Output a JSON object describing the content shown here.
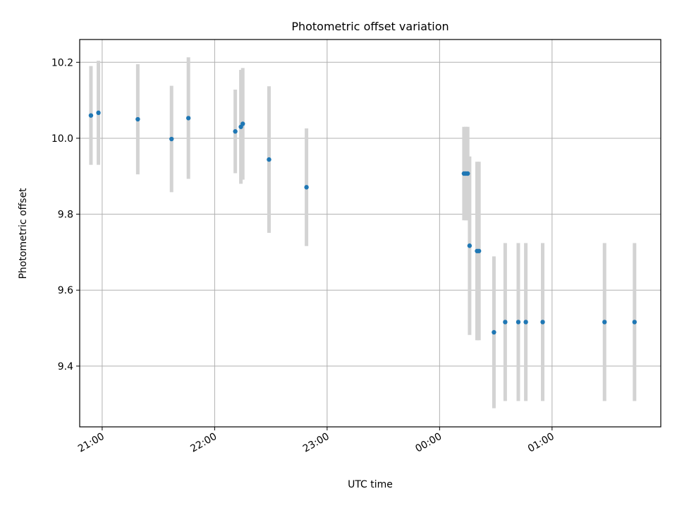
{
  "chart_data": {
    "type": "scatter",
    "title": "Photometric offset variation",
    "xlabel": "UTC time",
    "ylabel": "Photometric offset",
    "x_axis": {
      "kind": "time",
      "range": [
        "20:48",
        "01:58"
      ],
      "ticks": [
        "21:00",
        "22:00",
        "23:00",
        "00:00",
        "01:00"
      ]
    },
    "y_axis": {
      "range": [
        9.24,
        10.26
      ],
      "ticks": [
        "9.4",
        "9.6",
        "9.8",
        "10.0",
        "10.2"
      ]
    },
    "grid": true,
    "colors": {
      "points": "#1f77b4",
      "error_bars": "#d3d3d3",
      "grid": "#b0b0b0"
    },
    "series": [
      {
        "points": [
          {
            "x": "20:54",
            "y": 10.06,
            "err": 0.13
          },
          {
            "x": "20:58",
            "y": 10.067,
            "err": 0.137
          },
          {
            "x": "21:19",
            "y": 10.05,
            "err": 0.145
          },
          {
            "x": "21:37",
            "y": 9.998,
            "err": 0.14
          },
          {
            "x": "21:46",
            "y": 10.053,
            "err": 0.16
          },
          {
            "x": "22:11",
            "y": 10.018,
            "err": 0.11
          },
          {
            "x": "22:14",
            "y": 10.03,
            "err": 0.15
          },
          {
            "x": "22:15",
            "y": 10.038,
            "err": 0.147
          },
          {
            "x": "22:29",
            "y": 9.944,
            "err": 0.193
          },
          {
            "x": "22:49",
            "y": 9.871,
            "err": 0.155
          },
          {
            "x": "00:13",
            "y": 9.907,
            "err": 0.123
          },
          {
            "x": "00:14",
            "y": 9.907,
            "err": 0.123
          },
          {
            "x": "00:15",
            "y": 9.907,
            "err": 0.123
          },
          {
            "x": "00:16",
            "y": 9.717,
            "err": 0.235
          },
          {
            "x": "00:20",
            "y": 9.703,
            "err": 0.235
          },
          {
            "x": "00:21",
            "y": 9.703,
            "err": 0.235
          },
          {
            "x": "00:29",
            "y": 9.489,
            "err": 0.2
          },
          {
            "x": "00:35",
            "y": 9.516,
            "err": 0.208
          },
          {
            "x": "00:42",
            "y": 9.516,
            "err": 0.208
          },
          {
            "x": "00:46",
            "y": 9.516,
            "err": 0.208
          },
          {
            "x": "00:55",
            "y": 9.516,
            "err": 0.208
          },
          {
            "x": "01:28",
            "y": 9.516,
            "err": 0.208
          },
          {
            "x": "01:44",
            "y": 9.516,
            "err": 0.208
          }
        ]
      }
    ]
  }
}
